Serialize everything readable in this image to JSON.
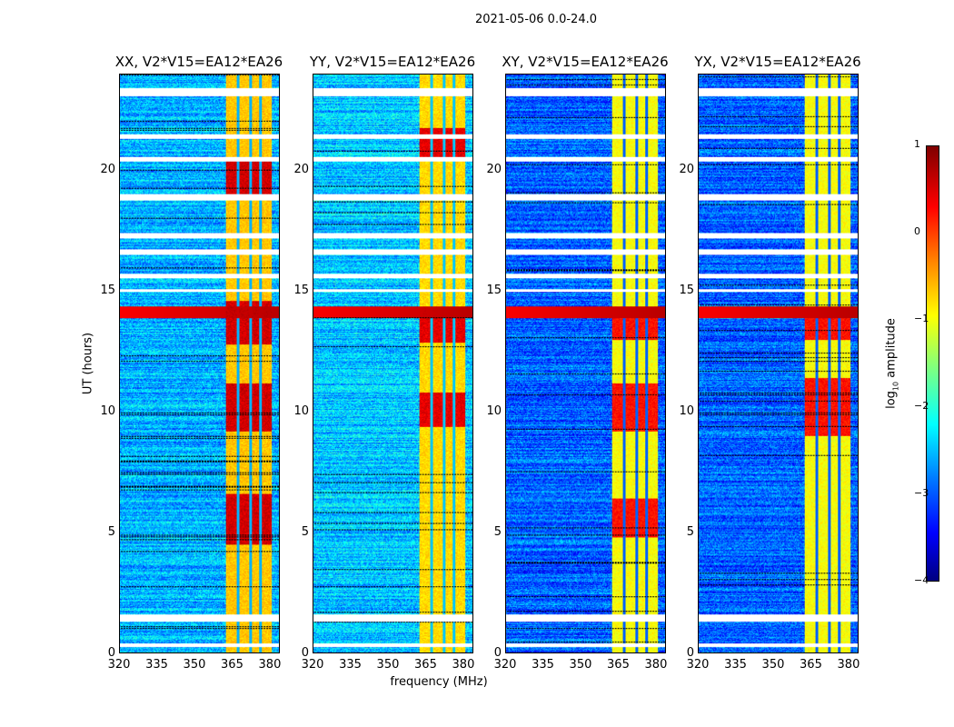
{
  "chart_data": {
    "type": "heatmap",
    "title": "2021-05-06 0.0-24.0",
    "xlabel": "frequency (MHz)",
    "ylabel": "UT (hours)",
    "xlim": [
      320,
      384
    ],
    "ylim": [
      0,
      24
    ],
    "xticks": [
      "320",
      "335",
      "350",
      "365",
      "380"
    ],
    "xtick_values": [
      320,
      335,
      350,
      365,
      380
    ],
    "yticks": [
      "0",
      "5",
      "10",
      "15",
      "20"
    ],
    "ytick_values": [
      0,
      5,
      10,
      15,
      20
    ],
    "colormap": "jet",
    "colorbar": {
      "label": "log10 amplitude",
      "label_main": "log",
      "label_sub": "10",
      "label_rest": " amplitude",
      "range": [
        -4,
        1
      ],
      "ticks": [
        "1",
        "0",
        "−1",
        "−2",
        "−3",
        "−4"
      ],
      "tick_values": [
        1,
        0,
        -1,
        -2,
        -3,
        -4
      ]
    },
    "panels": [
      {
        "title": "XX, V2*V15=EA12*EA26",
        "background": -2.5,
        "band_level": -0.6,
        "strong_hours": [
          [
            9.2,
            11.2
          ],
          [
            12.8,
            14.6
          ],
          [
            18.8,
            20.4
          ],
          [
            4.5,
            6.6
          ]
        ]
      },
      {
        "title": "YY, V2*V15=EA12*EA26",
        "background": -2.4,
        "band_level": -0.7,
        "strong_hours": [
          [
            9.4,
            10.8
          ],
          [
            12.9,
            14.4
          ],
          [
            20.6,
            21.8
          ]
        ]
      },
      {
        "title": "XY, V2*V15=EA12*EA26",
        "background": -2.9,
        "band_level": -0.9,
        "strong_hours": [
          [
            9.2,
            11.2
          ],
          [
            13.0,
            14.4
          ],
          [
            4.8,
            6.4
          ]
        ]
      },
      {
        "title": "YX, V2*V15=EA12*EA26",
        "background": -2.9,
        "band_level": -0.9,
        "strong_hours": [
          [
            9.0,
            11.4
          ],
          [
            13.0,
            14.4
          ]
        ]
      }
    ],
    "rfi_band_mhz": [
      362.5,
      381
    ],
    "channel_gaps_mhz": [
      367.5,
      372.5,
      376.5
    ],
    "rfi_broadband_hours": [
      [
        13.9,
        14.4
      ]
    ],
    "flagged_hours": [
      [
        23.1,
        23.45
      ],
      [
        21.35,
        21.55
      ],
      [
        20.4,
        20.6
      ],
      [
        18.8,
        19.05
      ],
      [
        17.2,
        17.45
      ],
      [
        16.55,
        16.75
      ],
      [
        15.55,
        15.75
      ],
      [
        15.0,
        15.1
      ],
      [
        1.3,
        1.6
      ],
      [
        0.25,
        0.4
      ]
    ]
  }
}
